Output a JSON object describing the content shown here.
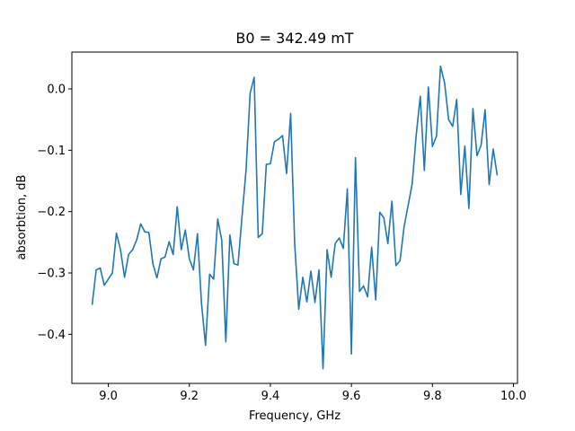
{
  "chart_data": {
    "type": "line",
    "title": "B0 = 342.49 mT",
    "xlabel": "Frequency, GHz",
    "ylabel": "absorbtion, dB",
    "xlim": [
      8.91,
      10.01
    ],
    "ylim": [
      -0.48,
      0.06
    ],
    "xticks": [
      9.0,
      9.2,
      9.4,
      9.6,
      9.8,
      10.0
    ],
    "xtick_labels": [
      "9.0",
      "9.2",
      "9.4",
      "9.6",
      "9.8",
      "10.0"
    ],
    "yticks": [
      0.0,
      -0.1,
      -0.2,
      -0.3,
      -0.4
    ],
    "ytick_labels": [
      "0.0",
      "−0.1",
      "−0.2",
      "−0.3",
      "−0.4"
    ],
    "grid": false,
    "line_color": "#1f77b4",
    "x": [
      8.96,
      8.97,
      8.98,
      8.99,
      9.0,
      9.01,
      9.02,
      9.03,
      9.04,
      9.05,
      9.06,
      9.07,
      9.08,
      9.09,
      9.1,
      9.11,
      9.12,
      9.13,
      9.14,
      9.15,
      9.16,
      9.17,
      9.18,
      9.19,
      9.2,
      9.21,
      9.22,
      9.23,
      9.24,
      9.25,
      9.26,
      9.27,
      9.28,
      9.29,
      9.3,
      9.31,
      9.32,
      9.33,
      9.34,
      9.35,
      9.36,
      9.37,
      9.38,
      9.39,
      9.4,
      9.41,
      9.42,
      9.43,
      9.44,
      9.45,
      9.46,
      9.47,
      9.48,
      9.49,
      9.5,
      9.51,
      9.52,
      9.53,
      9.54,
      9.55,
      9.56,
      9.57,
      9.58,
      9.59,
      9.6,
      9.61,
      9.62,
      9.63,
      9.64,
      9.65,
      9.66,
      9.67,
      9.68,
      9.69,
      9.7,
      9.71,
      9.72,
      9.73,
      9.74,
      9.75,
      9.76,
      9.77,
      9.78,
      9.79,
      9.8,
      9.81,
      9.82,
      9.83,
      9.84,
      9.85,
      9.86,
      9.87,
      9.88,
      9.89,
      9.9,
      9.91,
      9.92,
      9.93,
      9.94,
      9.95,
      9.96
    ],
    "y": [
      -0.352,
      -0.295,
      -0.292,
      -0.32,
      -0.31,
      -0.3,
      -0.235,
      -0.262,
      -0.307,
      -0.27,
      -0.262,
      -0.246,
      -0.22,
      -0.233,
      -0.234,
      -0.285,
      -0.308,
      -0.277,
      -0.274,
      -0.249,
      -0.27,
      -0.192,
      -0.262,
      -0.23,
      -0.277,
      -0.295,
      -0.236,
      -0.35,
      -0.418,
      -0.302,
      -0.31,
      -0.212,
      -0.247,
      -0.412,
      -0.238,
      -0.285,
      -0.287,
      -0.208,
      -0.132,
      -0.007,
      0.019,
      -0.242,
      -0.236,
      -0.123,
      -0.122,
      -0.086,
      -0.082,
      -0.076,
      -0.138,
      -0.04,
      -0.252,
      -0.359,
      -0.307,
      -0.347,
      -0.297,
      -0.348,
      -0.295,
      -0.456,
      -0.262,
      -0.307,
      -0.252,
      -0.243,
      -0.26,
      -0.163,
      -0.432,
      -0.112,
      -0.33,
      -0.321,
      -0.339,
      -0.258,
      -0.344,
      -0.201,
      -0.21,
      -0.252,
      -0.183,
      -0.288,
      -0.28,
      -0.225,
      -0.19,
      -0.155,
      -0.075,
      -0.012,
      -0.133,
      0.003,
      -0.094,
      -0.077,
      0.037,
      0.01,
      -0.05,
      -0.061,
      -0.017,
      -0.172,
      -0.093,
      -0.195,
      -0.032,
      -0.109,
      -0.092,
      -0.034,
      -0.156,
      -0.098,
      -0.141
    ]
  }
}
